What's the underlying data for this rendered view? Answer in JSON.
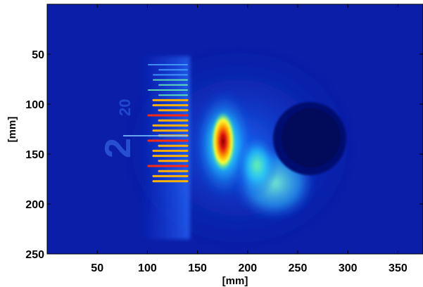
{
  "chart_data": {
    "type": "heatmap",
    "title": "",
    "xlabel": "[mm]",
    "ylabel": "[mm]",
    "xlim": [
      0,
      375
    ],
    "ylim": [
      250,
      0
    ],
    "y_axis_inverted": true,
    "xticks": [
      50,
      100,
      150,
      200,
      250,
      300,
      350
    ],
    "yticks": [
      50,
      100,
      150,
      200,
      250
    ],
    "colormap": "jet",
    "colors": {
      "background": "#0a1ea8",
      "low": "#0a1ea8",
      "mid": "#28c8ff",
      "high": "#ffe800",
      "peak": "#8b0000"
    },
    "features": {
      "ruler_image": {
        "x_range": [
          110,
          140
        ],
        "y_range": [
          50,
          220
        ],
        "text_seen": "2 20"
      },
      "hot_spot": {
        "x": 175,
        "y": 140
      },
      "dark_circle": {
        "x": 240,
        "y": 140
      }
    }
  }
}
